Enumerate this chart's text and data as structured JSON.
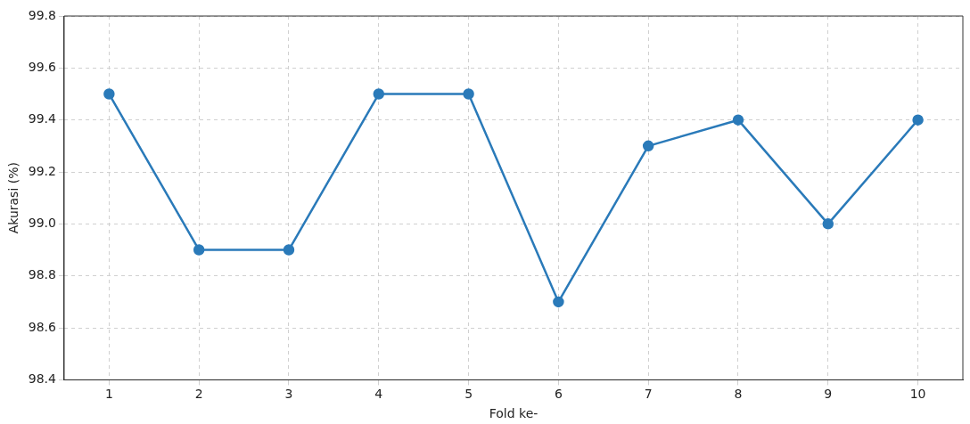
{
  "chart_data": {
    "type": "line",
    "xlabel": "Fold ke-",
    "ylabel": "Akurasi (%)",
    "categories": [
      "1",
      "2",
      "3",
      "4",
      "5",
      "6",
      "7",
      "8",
      "9",
      "10"
    ],
    "series": [
      {
        "color": "#2a7ab9",
        "values": [
          99.5,
          98.9,
          98.9,
          99.5,
          99.5,
          98.7,
          99.3,
          99.4,
          99.0,
          99.4
        ]
      }
    ],
    "ylim": [
      98.4,
      99.8
    ],
    "yticks": [
      {
        "value": 98.4,
        "label": "98.4"
      },
      {
        "value": 98.6,
        "label": "98.6"
      },
      {
        "value": 98.8,
        "label": "98.8"
      },
      {
        "value": 99.0,
        "label": "99.0"
      },
      {
        "value": 99.2,
        "label": "99.2"
      },
      {
        "value": 99.4,
        "label": "99.4"
      },
      {
        "value": 99.6,
        "label": "99.6"
      },
      {
        "value": 99.8,
        "label": "99.8"
      }
    ],
    "grid": true,
    "marker": "circle",
    "line_style": "solid"
  }
}
